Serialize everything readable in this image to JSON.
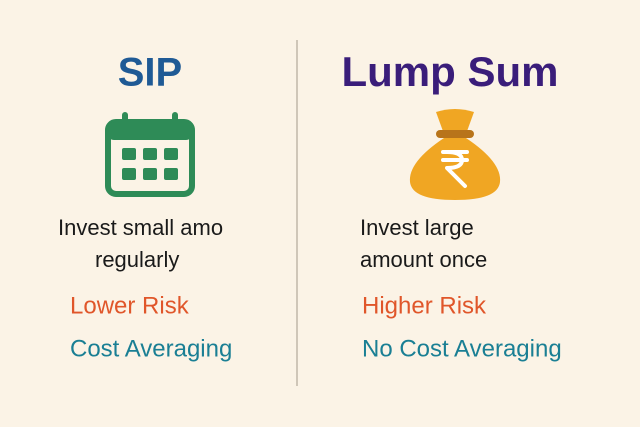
{
  "left": {
    "title": "SIP",
    "description": [
      "Invest small amo",
      "regularly"
    ],
    "points": [
      "Lower Risk",
      "Cost Averaging"
    ]
  },
  "right": {
    "title": "Lump Sum",
    "description": [
      "Invest large",
      "amount once"
    ],
    "points": [
      "Higher Risk",
      "No Cost Averaging"
    ]
  }
}
